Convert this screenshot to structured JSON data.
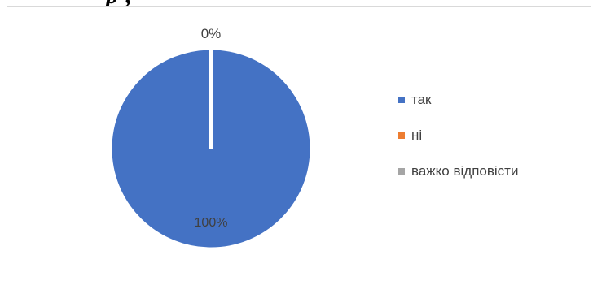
{
  "header": {
    "top_text": "р                                                          ,"
  },
  "chart_data": {
    "type": "pie",
    "categories": [
      "так",
      "ні",
      "важко відповісти"
    ],
    "values": [
      100,
      0,
      0
    ],
    "data_labels": [
      "100%",
      "0%",
      ""
    ],
    "colors": [
      "#4472c4",
      "#ed7d31",
      "#a5a5a5"
    ],
    "legend_position": "right"
  }
}
